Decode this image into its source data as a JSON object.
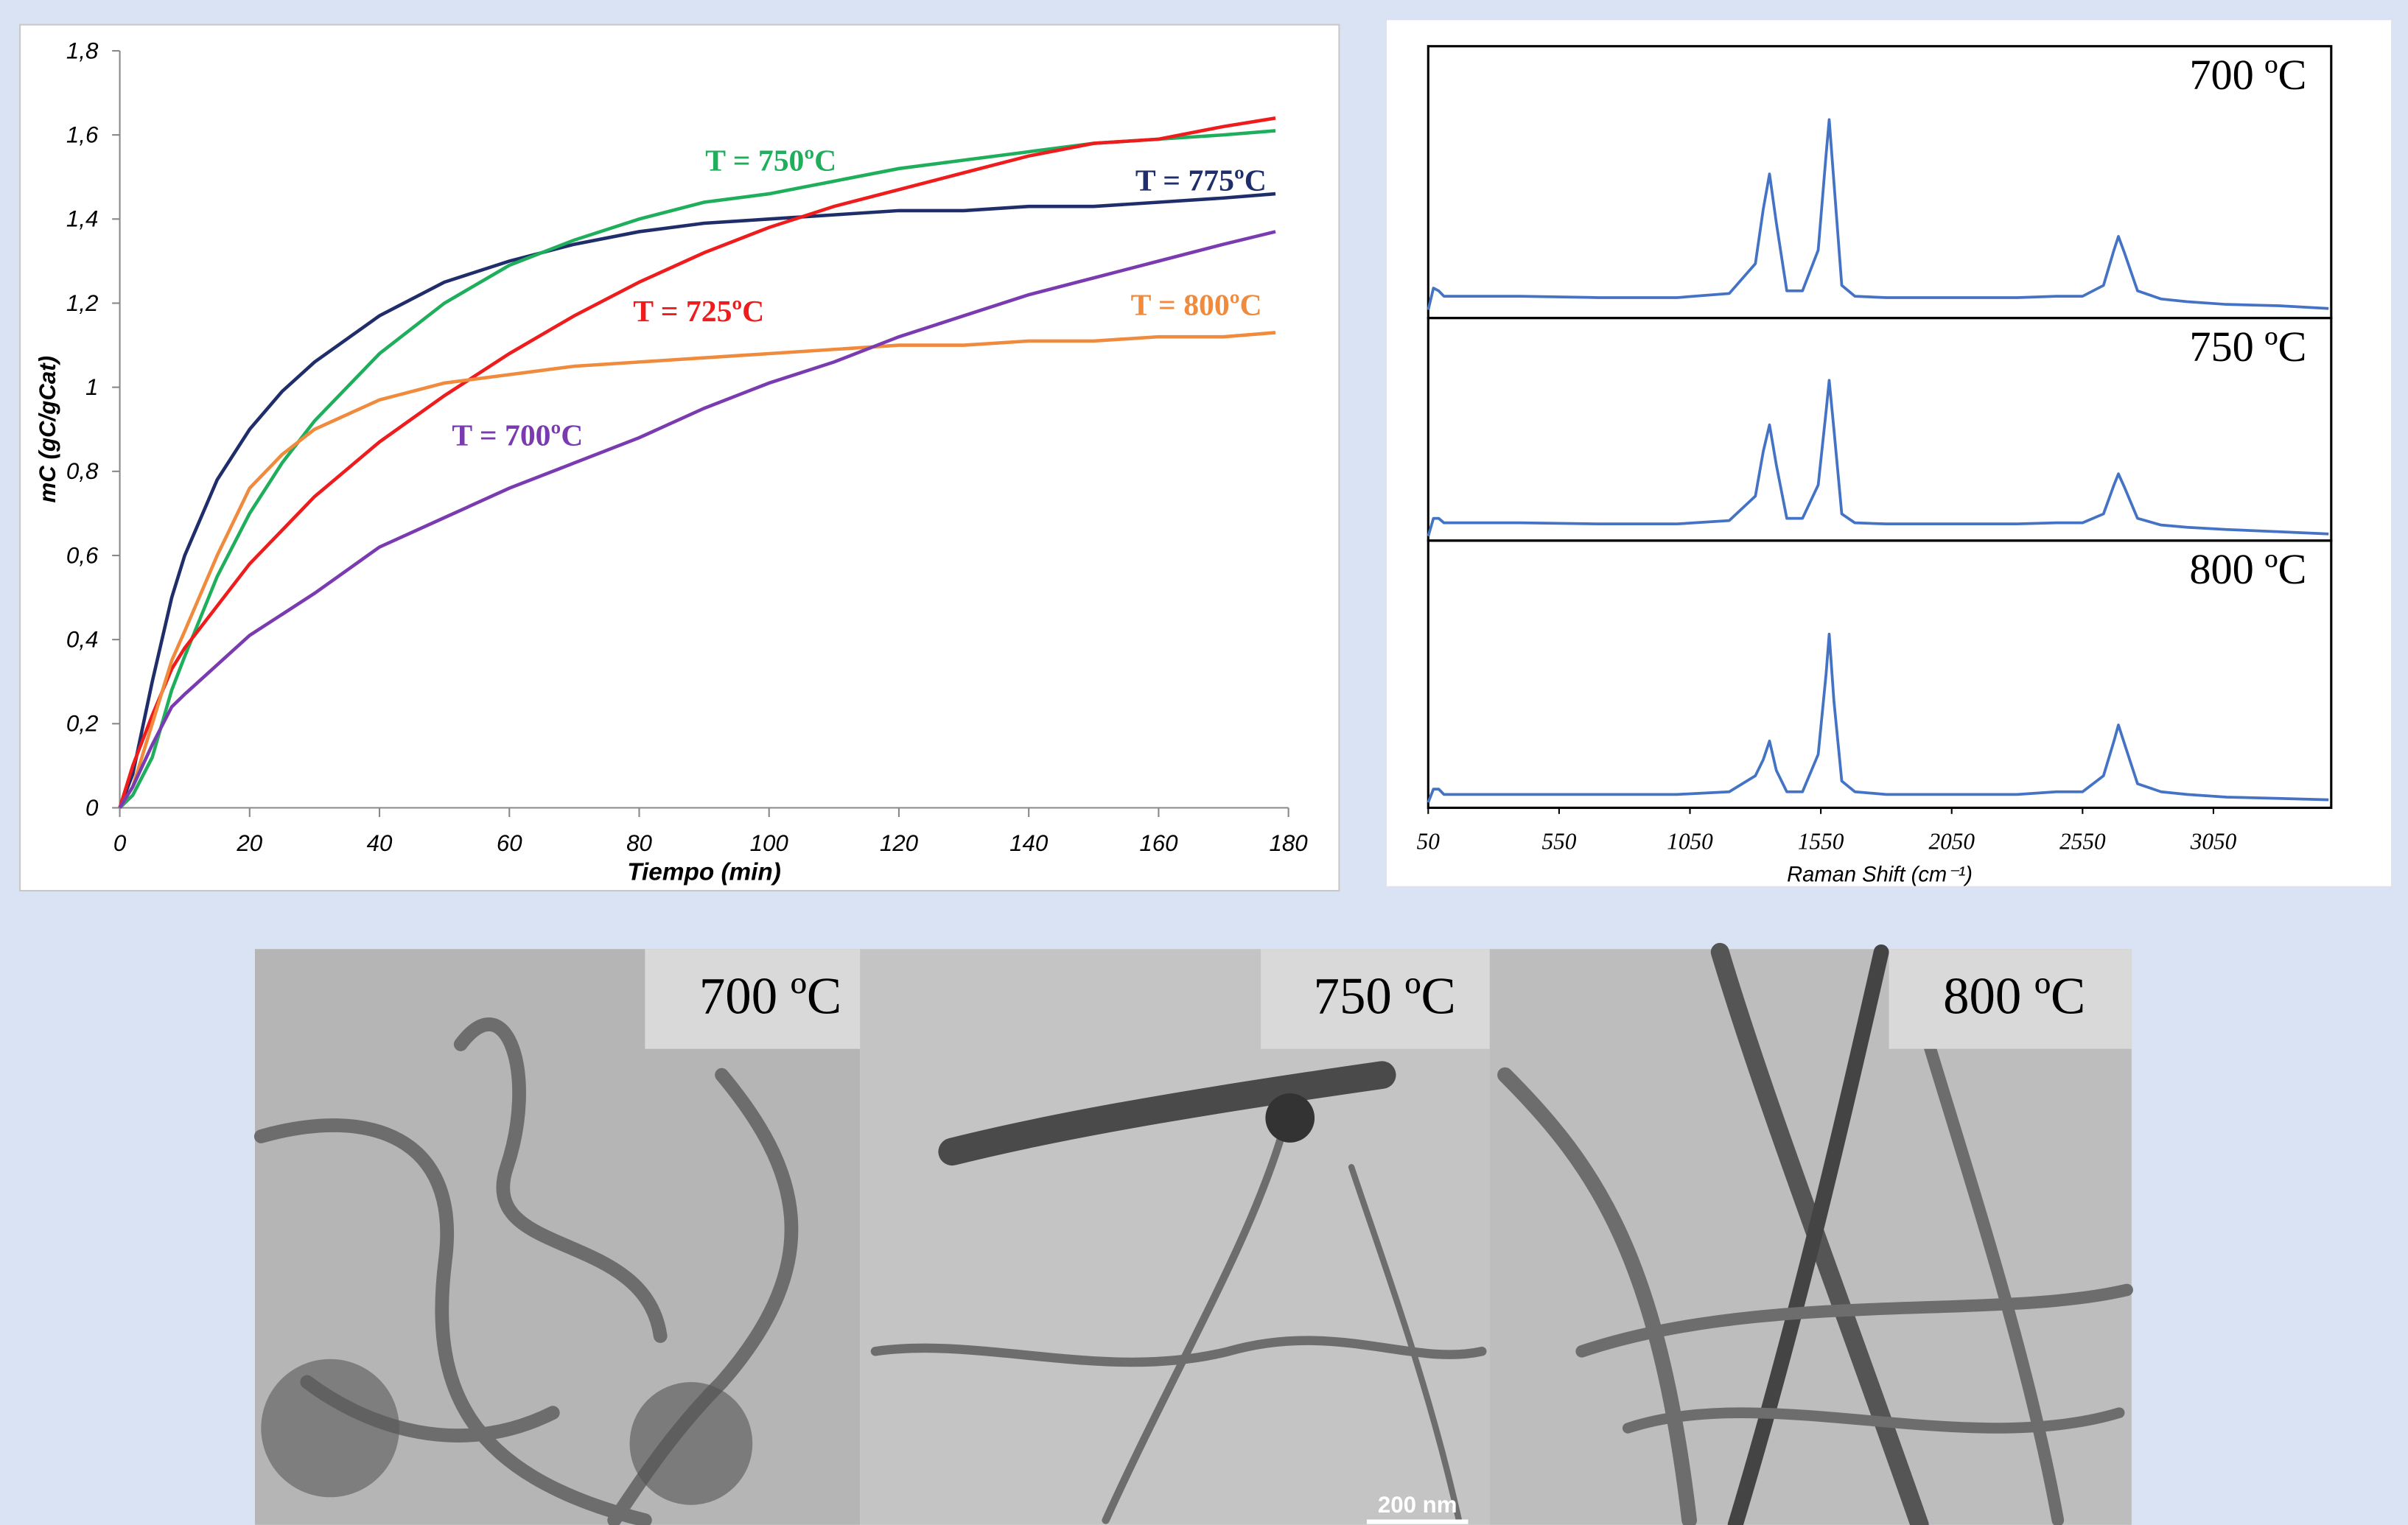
{
  "chart_data": [
    {
      "type": "line",
      "xlabel": "Tiempo (min)",
      "ylabel": "mC (gC/gCat)",
      "x": [
        0,
        2,
        5,
        8,
        10,
        15,
        20,
        25,
        30,
        40,
        50,
        60,
        70,
        80,
        90,
        100,
        110,
        120,
        130,
        140,
        150,
        160,
        170,
        178
      ],
      "series": [
        {
          "name": "T = 775ºC",
          "color": "#1f2d6b",
          "values": [
            0,
            0.08,
            0.3,
            0.5,
            0.6,
            0.78,
            0.9,
            0.99,
            1.06,
            1.17,
            1.25,
            1.3,
            1.34,
            1.37,
            1.39,
            1.4,
            1.41,
            1.42,
            1.42,
            1.43,
            1.43,
            1.44,
            1.45,
            1.46
          ]
        },
        {
          "name": "T = 750ºC",
          "color": "#1fae5b",
          "values": [
            0,
            0.03,
            0.12,
            0.28,
            0.36,
            0.55,
            0.7,
            0.82,
            0.92,
            1.08,
            1.2,
            1.29,
            1.35,
            1.4,
            1.44,
            1.46,
            1.49,
            1.52,
            1.54,
            1.56,
            1.58,
            1.59,
            1.6,
            1.61
          ]
        },
        {
          "name": "T = 725ºC",
          "color": "#ee1c1c",
          "values": [
            0,
            0.1,
            0.22,
            0.33,
            0.38,
            0.48,
            0.58,
            0.66,
            0.74,
            0.87,
            0.98,
            1.08,
            1.17,
            1.25,
            1.32,
            1.38,
            1.43,
            1.47,
            1.51,
            1.55,
            1.58,
            1.59,
            1.62,
            1.64
          ]
        },
        {
          "name": "T = 800ºC",
          "color": "#f08a3c",
          "values": [
            0,
            0.05,
            0.2,
            0.35,
            0.42,
            0.6,
            0.76,
            0.84,
            0.9,
            0.97,
            1.01,
            1.03,
            1.05,
            1.06,
            1.07,
            1.08,
            1.09,
            1.1,
            1.1,
            1.11,
            1.11,
            1.12,
            1.12,
            1.13
          ]
        },
        {
          "name": "T = 700ºC",
          "color": "#7a3bb0",
          "values": [
            0,
            0.05,
            0.15,
            0.24,
            0.27,
            0.34,
            0.41,
            0.46,
            0.51,
            0.62,
            0.69,
            0.76,
            0.82,
            0.88,
            0.95,
            1.01,
            1.06,
            1.12,
            1.17,
            1.22,
            1.26,
            1.3,
            1.34,
            1.37
          ]
        }
      ],
      "xlim": [
        0,
        180
      ],
      "xticks": [
        0,
        20,
        40,
        60,
        80,
        100,
        120,
        140,
        160,
        180
      ],
      "ylim": [
        0,
        1.8
      ],
      "yticks": [
        0,
        {
          "value": 0.2,
          "label": "0,2"
        },
        {
          "value": 0.4,
          "label": "0,4"
        },
        {
          "value": 0.6,
          "label": "0,6"
        },
        {
          "value": 0.8,
          "label": "0,8"
        },
        1,
        {
          "value": 1.2,
          "label": "1,2"
        },
        {
          "value": 1.4,
          "label": "1,4"
        },
        {
          "value": 1.6,
          "label": "1,6"
        },
        {
          "value": 1.8,
          "label": "1,8"
        }
      ]
    },
    {
      "type": "stacked-spectra",
      "xlabel": "Raman Shift (cm⁻¹)",
      "x": [
        50,
        70,
        90,
        110,
        200,
        400,
        700,
        1000,
        1200,
        1300,
        1330,
        1354,
        1380,
        1420,
        1480,
        1540,
        1570,
        1582,
        1600,
        1630,
        1680,
        1800,
        2000,
        2300,
        2450,
        2550,
        2630,
        2670,
        2687,
        2710,
        2760,
        2850,
        2950,
        3100,
        3300,
        3490
      ],
      "series": [
        {
          "name": "700 ºC",
          "color": "#4472c4",
          "values": [
            0.03,
            0.11,
            0.1,
            0.08,
            0.08,
            0.08,
            0.075,
            0.075,
            0.09,
            0.2,
            0.4,
            0.53,
            0.35,
            0.1,
            0.1,
            0.25,
            0.6,
            0.73,
            0.5,
            0.12,
            0.08,
            0.075,
            0.075,
            0.075,
            0.08,
            0.08,
            0.12,
            0.25,
            0.3,
            0.24,
            0.1,
            0.07,
            0.06,
            0.05,
            0.045,
            0.035
          ]
        },
        {
          "name": "750 ºC",
          "color": "#4472c4",
          "values": [
            0.02,
            0.1,
            0.1,
            0.08,
            0.08,
            0.08,
            0.075,
            0.075,
            0.09,
            0.2,
            0.4,
            0.52,
            0.34,
            0.1,
            0.1,
            0.25,
            0.58,
            0.72,
            0.5,
            0.12,
            0.08,
            0.075,
            0.075,
            0.075,
            0.08,
            0.08,
            0.12,
            0.25,
            0.3,
            0.24,
            0.1,
            0.07,
            0.06,
            0.05,
            0.04,
            0.03
          ]
        },
        {
          "name": "800 ºC",
          "color": "#4472c4",
          "values": [
            0.02,
            0.07,
            0.07,
            0.05,
            0.05,
            0.05,
            0.05,
            0.05,
            0.06,
            0.12,
            0.18,
            0.25,
            0.14,
            0.06,
            0.06,
            0.2,
            0.5,
            0.65,
            0.4,
            0.1,
            0.06,
            0.05,
            0.05,
            0.05,
            0.06,
            0.06,
            0.12,
            0.25,
            0.31,
            0.24,
            0.09,
            0.06,
            0.05,
            0.04,
            0.035,
            0.03
          ]
        }
      ],
      "xlim": [
        50,
        3500
      ],
      "xticks": [
        50,
        550,
        1050,
        1550,
        2050,
        2550,
        3050
      ]
    }
  ],
  "micrographs": {
    "labels": [
      "700 ºC",
      "750 ºC",
      "800 ºC"
    ],
    "scale_bar": "200 nm"
  }
}
